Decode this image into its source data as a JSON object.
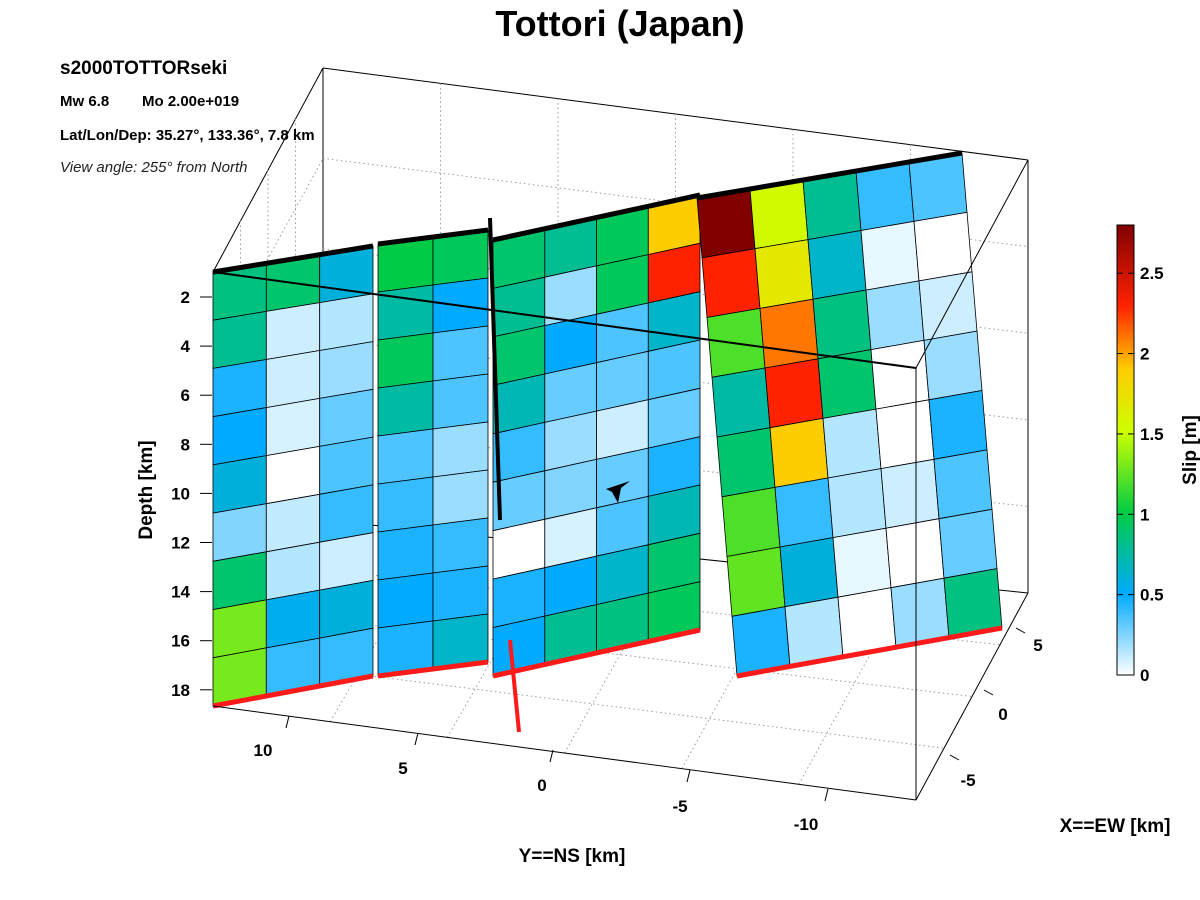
{
  "chart_data": {
    "type": "heatmap",
    "title": "Tottori (Japan)",
    "event_id": "s2000TOTTORseki",
    "mw_label": "Mw 6.8",
    "mo_label": "Mo 2.00e+019",
    "location_label": "Lat/Lon/Dep: 35.27°, 133.36°, 7.8 km",
    "view_label": "View angle: 255° from North",
    "ylabel": "Depth [km]",
    "xlabel": "Y==NS [km]",
    "zlabel": "X==EW [km]",
    "colorbar_label": "Slip [m]",
    "colorbar": {
      "min": 0,
      "max": 2.8,
      "ticks": [
        "0",
        "0.5",
        "1",
        "1.5",
        "2",
        "2.5"
      ],
      "tick_values": [
        0,
        0.5,
        1,
        1.5,
        2,
        2.5
      ]
    },
    "depth_ticks": [
      "2",
      "4",
      "6",
      "8",
      "10",
      "12",
      "14",
      "16",
      "18"
    ],
    "ns_ticks": [
      "10",
      "5",
      "0",
      "-5",
      "-10"
    ],
    "ew_ticks": [
      "5",
      "0",
      "-5"
    ],
    "segments": [
      {
        "name": "segment-1",
        "slip": [
          [
            0.85,
            0.9,
            0.6
          ],
          [
            0.8,
            0.1,
            0.15
          ],
          [
            0.45,
            0.1,
            0.2
          ],
          [
            0.5,
            0.08,
            0.3
          ],
          [
            0.6,
            0.0,
            0.35
          ],
          [
            0.25,
            0.12,
            0.4
          ],
          [
            0.9,
            0.15,
            0.1
          ],
          [
            1.3,
            0.55,
            0.6
          ],
          [
            1.3,
            0.4,
            0.4
          ]
        ]
      },
      {
        "name": "segment-2",
        "slip": [
          [
            1.0,
            0.95
          ],
          [
            0.75,
            0.5
          ],
          [
            0.95,
            0.35
          ],
          [
            0.75,
            0.35
          ],
          [
            0.35,
            0.2
          ],
          [
            0.4,
            0.2
          ],
          [
            0.45,
            0.4
          ],
          [
            0.5,
            0.45
          ],
          [
            0.45,
            0.65
          ]
        ]
      },
      {
        "name": "segment-3",
        "slip": [
          [
            0.9,
            0.8,
            0.95,
            1.9
          ],
          [
            0.8,
            0.2,
            0.95,
            2.3
          ],
          [
            0.9,
            0.5,
            0.35,
            0.65
          ],
          [
            0.7,
            0.3,
            0.3,
            0.35
          ],
          [
            0.4,
            0.2,
            0.1,
            0.3
          ],
          [
            0.3,
            0.25,
            0.3,
            0.45
          ],
          [
            0.0,
            0.08,
            0.35,
            0.7
          ],
          [
            0.45,
            0.5,
            0.65,
            0.9
          ],
          [
            0.5,
            0.8,
            0.85,
            0.95
          ]
        ]
      },
      {
        "name": "segment-4",
        "slip": [
          [
            2.8,
            1.55,
            0.8,
            0.4,
            0.35
          ],
          [
            2.3,
            1.7,
            0.65,
            0.05,
            0.0
          ],
          [
            1.2,
            2.1,
            0.85,
            0.2,
            0.1
          ],
          [
            0.75,
            2.3,
            0.9,
            0.0,
            0.2
          ],
          [
            0.9,
            1.9,
            0.15,
            0.0,
            0.45
          ],
          [
            1.2,
            0.4,
            0.15,
            0.1,
            0.35
          ],
          [
            1.25,
            0.6,
            0.05,
            0.0,
            0.3
          ],
          [
            0.45,
            0.15,
            0.0,
            0.2,
            0.85
          ]
        ]
      }
    ]
  }
}
